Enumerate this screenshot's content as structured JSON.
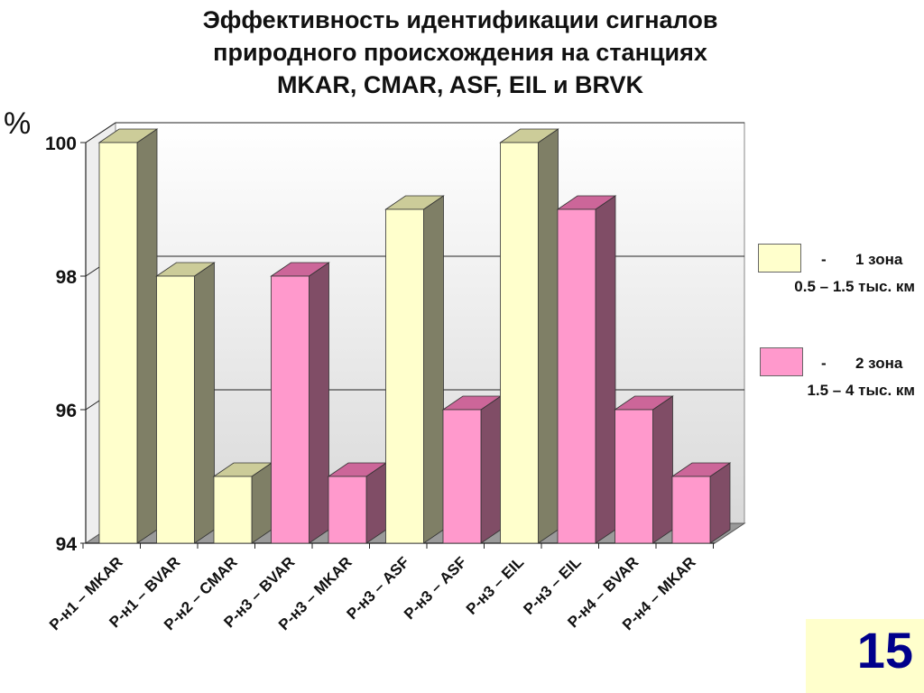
{
  "title_lines": [
    "Эффективность идентификации сигналов",
    "природного происхождения на станциях",
    "MKAR, CMAR, ASF, EIL и BRVK"
  ],
  "page_number": "15",
  "legend": [
    {
      "dash": "-",
      "name": "1 зона",
      "range": "0.5 – 1.5 тыс. км",
      "color": "#ffffcc"
    },
    {
      "dash": "-",
      "name": "2 зона",
      "range": "1.5 – 4 тыс. км",
      "color": "#ff99cc"
    }
  ],
  "chart_data": {
    "type": "bar",
    "ylabel": "%",
    "ylim": [
      94,
      100
    ],
    "yticks": [
      94,
      96,
      98,
      100
    ],
    "grid": true,
    "legend_position": "right",
    "categories": [
      "Р-н1 – MKAR",
      "Р-н1 – BVAR",
      "Р-н2 – CMAR",
      "Р-н3 – BVAR",
      "Р-н3 – MKAR",
      "Р-н3 – ASF",
      "Р-н3 – ASF",
      "Р-н3 – EIL",
      "Р-н3 – EIL",
      "Р-н4 – BVAR",
      "Р-н4 – MKAR"
    ],
    "values": [
      100,
      98,
      95,
      98,
      95,
      99,
      96,
      100,
      99,
      96,
      95
    ],
    "zones": [
      1,
      1,
      1,
      2,
      2,
      1,
      2,
      1,
      2,
      2,
      2
    ],
    "zone_colors": {
      "1": {
        "front": "#ffffcc",
        "top": "#cccc99",
        "side": "#7f7f66"
      },
      "2": {
        "front": "#ff99cc",
        "top": "#cc6699",
        "side": "#804d66"
      }
    }
  }
}
